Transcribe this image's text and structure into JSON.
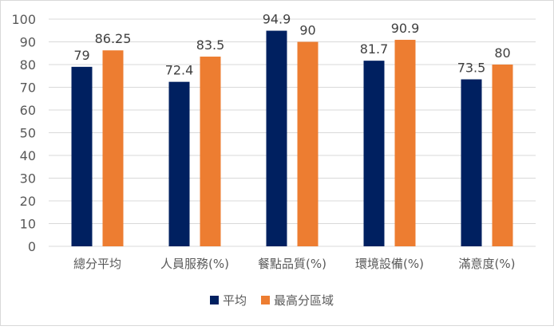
{
  "chart_data": {
    "type": "bar",
    "title": "",
    "xlabel": "",
    "ylabel": "",
    "ylim": [
      0,
      100
    ],
    "yticks": [
      0,
      10,
      20,
      30,
      40,
      50,
      60,
      70,
      80,
      90,
      100
    ],
    "grid": true,
    "legend_position": "bottom",
    "categories": [
      "總分平均",
      "人員服務(%)",
      "餐點品質(%)",
      "環境設備(%)",
      "滿意度(%)"
    ],
    "series": [
      {
        "name": "平均",
        "color": "#002060",
        "values": [
          79,
          72.4,
          94.9,
          81.7,
          73.5
        ]
      },
      {
        "name": "最高分區域",
        "color": "#ED7D31",
        "values": [
          86.25,
          83.5,
          90,
          90.9,
          80
        ]
      }
    ]
  }
}
